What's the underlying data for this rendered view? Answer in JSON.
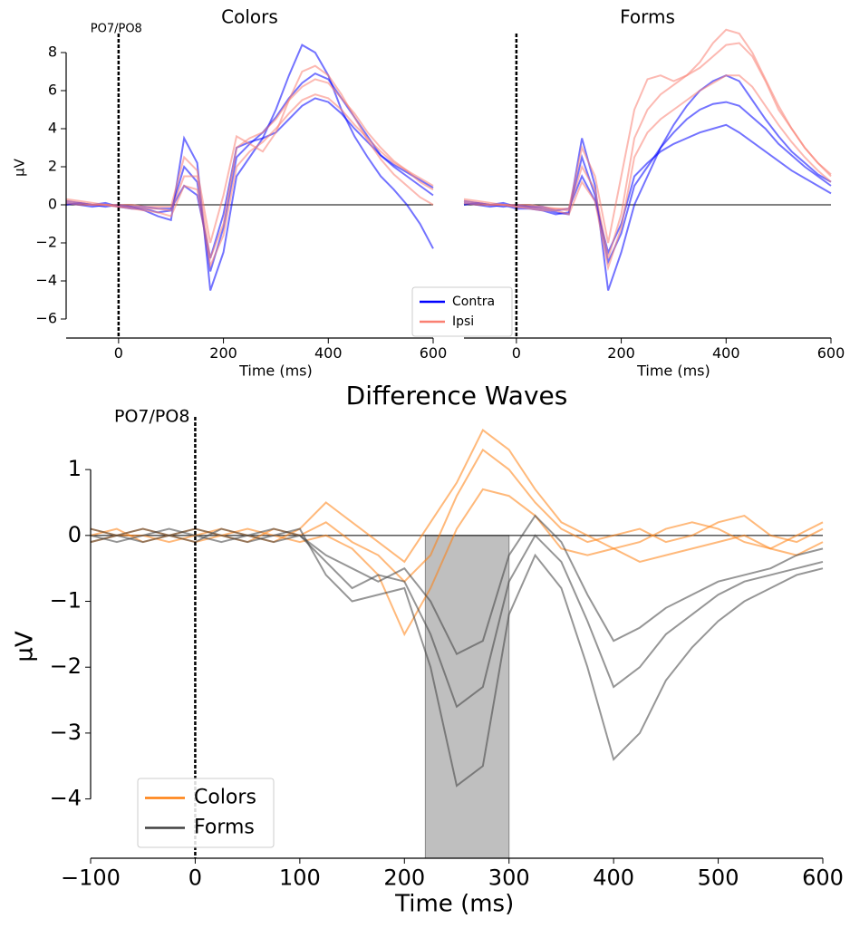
{
  "chart_data": [
    {
      "type": "line",
      "title": "Colors",
      "annotation": "PO7/PO8",
      "xlabel": "Time (ms)",
      "ylabel": "µV",
      "x": [
        -100,
        -75,
        -50,
        -25,
        0,
        25,
        50,
        75,
        100,
        125,
        150,
        175,
        200,
        225,
        250,
        275,
        300,
        325,
        350,
        375,
        400,
        425,
        450,
        475,
        500,
        525,
        550,
        575,
        600
      ],
      "xlim": [
        -100,
        600
      ],
      "xticks": [
        0,
        200,
        400,
        600
      ],
      "ylim": [
        -7,
        9
      ],
      "yticks": [
        {
          "value": -6,
          "label": "−6"
        },
        {
          "value": -4,
          "label": "−4"
        },
        {
          "value": -2,
          "label": "−2"
        },
        0,
        2,
        4,
        6,
        8
      ],
      "vline": 0,
      "hline": 0,
      "legend": "lower right",
      "series": [
        {
          "name": "Contra",
          "color": "#0000ff",
          "values": [
            0.1,
            0,
            -0.1,
            0,
            -0.1,
            -0.2,
            -0.2,
            -0.4,
            -0.3,
            2,
            1.2,
            -3.5,
            -1.2,
            2.5,
            3.2,
            3.8,
            4.6,
            5.6,
            6.4,
            6.9,
            6.6,
            5.6,
            4.6,
            3.6,
            2.6,
            2,
            1.5,
            1,
            0.5
          ]
        },
        {
          "color": "#0000ff",
          "values": [
            0.2,
            0.1,
            0,
            -0.1,
            0,
            -0.1,
            -0.3,
            -0.6,
            -0.8,
            3.5,
            2.2,
            -4.5,
            -2.5,
            1.5,
            2.5,
            3.5,
            5,
            6.8,
            8.4,
            8,
            6.8,
            5,
            3.6,
            2.5,
            1.5,
            0.8,
            0,
            -1,
            -2.3
          ]
        },
        {
          "color": "#0000ff",
          "values": [
            0,
            0.1,
            0,
            0.1,
            -0.1,
            -0.1,
            -0.1,
            -0.2,
            -0.2,
            1,
            0.5,
            -2.8,
            -0.5,
            3,
            3.3,
            3.5,
            3.8,
            4.5,
            5.2,
            5.6,
            5.4,
            4.8,
            4,
            3.3,
            2.6,
            2.1,
            1.7,
            1.3,
            0.9
          ]
        },
        {
          "name": "Ipsi",
          "color": "#fa8072",
          "values": [
            0.2,
            0.1,
            0,
            0,
            -0.1,
            -0.1,
            -0.2,
            -0.2,
            -0.3,
            1.5,
            1.5,
            -2.8,
            -1,
            3,
            3.5,
            3.8,
            4.5,
            5.5,
            6.2,
            6.6,
            6.4,
            5.6,
            4.8,
            3.8,
            3,
            2.3,
            1.8,
            1.2,
            0.8
          ]
        },
        {
          "color": "#fa8072",
          "values": [
            0.3,
            0.2,
            0.1,
            0,
            0,
            0,
            -0.1,
            -0.1,
            -0.1,
            2.5,
            1.8,
            -2,
            0.5,
            3.6,
            3.2,
            2.8,
            3.8,
            5.5,
            7,
            7.3,
            6.8,
            5.8,
            4.6,
            3.4,
            2.4,
            1.6,
            1,
            0.4,
            0
          ]
        },
        {
          "color": "#fa8072",
          "values": [
            0.1,
            0,
            0,
            0,
            -0.1,
            -0.2,
            -0.3,
            -0.4,
            -0.6,
            1,
            0.8,
            -3.2,
            -1.6,
            2,
            2.8,
            3.3,
            4,
            4.8,
            5.5,
            5.8,
            5.6,
            5,
            4.2,
            3.5,
            2.8,
            2.2,
            1.8,
            1.4,
            1
          ]
        }
      ]
    },
    {
      "type": "line",
      "title": "Forms",
      "xlabel": "Time (ms)",
      "x": [
        -100,
        -75,
        -50,
        -25,
        0,
        25,
        50,
        75,
        100,
        125,
        150,
        175,
        200,
        225,
        250,
        275,
        300,
        325,
        350,
        375,
        400,
        425,
        450,
        475,
        500,
        525,
        550,
        575,
        600
      ],
      "xlim": [
        -100,
        600
      ],
      "xticks": [
        0,
        200,
        400,
        600
      ],
      "ylim": [
        -7,
        9
      ],
      "vline": 0,
      "hline": 0,
      "series": [
        {
          "color": "#0000ff",
          "values": [
            0.1,
            0,
            -0.1,
            0,
            -0.2,
            -0.2,
            -0.3,
            -0.5,
            -0.4,
            2.5,
            0.5,
            -3,
            -1.5,
            1,
            2,
            3,
            3.8,
            4.5,
            5,
            5.3,
            5.4,
            5.2,
            4.6,
            4,
            3.2,
            2.6,
            2,
            1.5,
            1
          ]
        },
        {
          "color": "#0000ff",
          "values": [
            0.2,
            0.1,
            0,
            -0.1,
            0,
            -0.1,
            -0.2,
            -0.4,
            -0.5,
            3.5,
            1,
            -4.5,
            -2.5,
            0,
            1.5,
            3,
            4.2,
            5.2,
            6,
            6.5,
            6.8,
            6.5,
            5.5,
            4.5,
            3.6,
            2.8,
            2.2,
            1.6,
            1.2
          ]
        },
        {
          "color": "#0000ff",
          "values": [
            0,
            0.1,
            0,
            0.1,
            -0.1,
            -0.1,
            -0.1,
            -0.3,
            -0.2,
            1.5,
            0.2,
            -2.5,
            -1,
            1.5,
            2.2,
            2.8,
            3.2,
            3.5,
            3.8,
            4,
            4.2,
            3.8,
            3.3,
            2.8,
            2.3,
            1.8,
            1.4,
            1,
            0.6
          ]
        },
        {
          "color": "#fa8072",
          "values": [
            0.2,
            0.1,
            0,
            0,
            -0.1,
            -0.1,
            -0.2,
            -0.2,
            -0.3,
            2,
            0.8,
            -2.8,
            -0.5,
            3.5,
            5,
            5.8,
            6.3,
            6.8,
            7.2,
            7.8,
            8.4,
            8.5,
            7.8,
            6.5,
            5,
            4,
            3,
            2.2,
            1.5
          ]
        },
        {
          "color": "#fa8072",
          "values": [
            0.3,
            0.2,
            0.1,
            0,
            0,
            0,
            -0.1,
            -0.2,
            -0.2,
            3,
            1.5,
            -2,
            1.5,
            5,
            6.6,
            6.8,
            6.5,
            6.8,
            7.5,
            8.5,
            9.2,
            9,
            8,
            6.6,
            5.2,
            4,
            3,
            2.2,
            1.6
          ]
        },
        {
          "color": "#fa8072",
          "values": [
            0.1,
            0,
            0,
            0,
            -0.1,
            -0.2,
            -0.3,
            -0.3,
            -0.5,
            1.2,
            0.2,
            -3.3,
            -1.2,
            2.5,
            3.8,
            4.5,
            5,
            5.5,
            6,
            6.4,
            6.8,
            6.8,
            6.2,
            5.2,
            4.2,
            3.3,
            2.5,
            1.8,
            1.2
          ]
        }
      ]
    },
    {
      "type": "line",
      "title": "Difference Waves",
      "annotation": "PO7/PO8",
      "xlabel": "Time (ms)",
      "ylabel": "µV",
      "x": [
        -100,
        -75,
        -50,
        -25,
        0,
        25,
        50,
        75,
        100,
        125,
        150,
        175,
        200,
        225,
        250,
        275,
        300,
        325,
        350,
        375,
        400,
        425,
        450,
        475,
        500,
        525,
        550,
        575,
        600
      ],
      "xlim": [
        -100,
        600
      ],
      "xticks": [
        {
          "value": -100,
          "label": "−100"
        },
        0,
        100,
        200,
        300,
        400,
        500,
        600
      ],
      "ylim": [
        -4.9,
        1.8
      ],
      "yticks": [
        {
          "value": -4,
          "label": "−4"
        },
        {
          "value": -3,
          "label": "−3"
        },
        {
          "value": -2,
          "label": "−2"
        },
        {
          "value": -1,
          "label": "−1"
        },
        0,
        1
      ],
      "vline": 0,
      "hline": 0,
      "span": [
        220,
        300
      ],
      "legend": "lower left",
      "series": [
        {
          "name": "Colors",
          "color": "#ff7f0e",
          "values": [
            0,
            0.1,
            -0.1,
            0,
            0.1,
            0,
            -0.1,
            0.1,
            0,
            0.2,
            -0.1,
            -0.3,
            -0.7,
            -0.3,
            0.6,
            1.3,
            1,
            0.5,
            0.1,
            -0.1,
            0,
            0.1,
            -0.1,
            0,
            0.2,
            0.3,
            0,
            -0.1,
            0.1
          ]
        },
        {
          "color": "#ff7f0e",
          "values": [
            0.1,
            0,
            0,
            -0.1,
            0,
            0.1,
            0,
            -0.1,
            0.1,
            0.5,
            0.2,
            -0.1,
            -0.4,
            0.2,
            0.8,
            1.6,
            1.3,
            0.7,
            0.2,
            0,
            -0.2,
            -0.1,
            0.1,
            0.2,
            0.1,
            -0.1,
            -0.2,
            0,
            0.2
          ]
        },
        {
          "color": "#ff7f0e",
          "values": [
            -0.1,
            0,
            0.1,
            0,
            -0.1,
            0,
            0.1,
            0,
            -0.1,
            0,
            -0.2,
            -0.6,
            -1.5,
            -0.8,
            0.1,
            0.7,
            0.6,
            0.3,
            -0.2,
            -0.3,
            -0.2,
            -0.4,
            -0.3,
            -0.2,
            -0.1,
            0,
            -0.2,
            -0.3,
            -0.1
          ]
        },
        {
          "name": "Forms",
          "color": "#404040",
          "values": [
            0,
            -0.1,
            0,
            0.1,
            0,
            -0.1,
            0,
            0.1,
            0,
            -0.4,
            -0.8,
            -0.6,
            -0.7,
            -1.5,
            -2.6,
            -2.3,
            -0.7,
            0,
            -0.4,
            -1.3,
            -2.3,
            -2,
            -1.5,
            -1.2,
            -0.9,
            -0.7,
            -0.6,
            -0.5,
            -0.4
          ]
        },
        {
          "color": "#404040",
          "values": [
            0.1,
            0,
            -0.1,
            0,
            0.1,
            0,
            -0.1,
            0,
            0.1,
            -0.6,
            -1,
            -0.9,
            -0.8,
            -2,
            -3.8,
            -3.5,
            -1.2,
            -0.3,
            -0.8,
            -2,
            -3.4,
            -3,
            -2.2,
            -1.7,
            -1.3,
            -1,
            -0.8,
            -0.6,
            -0.5
          ]
        },
        {
          "color": "#404040",
          "values": [
            -0.1,
            0,
            0.1,
            0,
            -0.1,
            0.1,
            0,
            -0.1,
            0,
            -0.3,
            -0.5,
            -0.7,
            -0.5,
            -1,
            -1.8,
            -1.6,
            -0.3,
            0.3,
            -0.1,
            -0.9,
            -1.6,
            -1.4,
            -1.1,
            -0.9,
            -0.7,
            -0.6,
            -0.5,
            -0.3,
            -0.2
          ]
        }
      ]
    }
  ]
}
